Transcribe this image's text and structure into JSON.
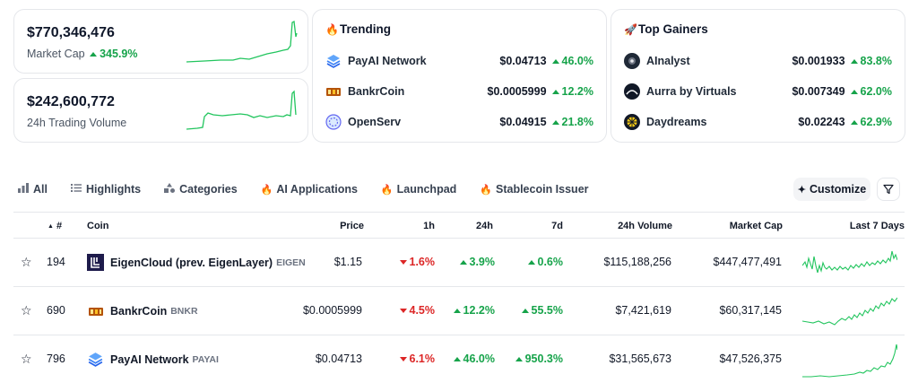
{
  "stats": [
    {
      "value": "$770,346,476",
      "label": "Market Cap",
      "change": "345.9%"
    },
    {
      "value": "$242,600,772",
      "label": "24h Trading Volume",
      "change": ""
    }
  ],
  "trending": {
    "title": "Trending",
    "icon": "fire-icon",
    "items": [
      {
        "name": "PayAI Network",
        "price": "$0.04713",
        "change": "46.0%"
      },
      {
        "name": "BankrCoin",
        "price": "$0.0005999",
        "change": "12.2%"
      },
      {
        "name": "OpenServ",
        "price": "$0.04915",
        "change": "21.8%"
      }
    ]
  },
  "gainers": {
    "title": "Top Gainers",
    "icon": "rocket-icon",
    "items": [
      {
        "name": "AInalyst",
        "price": "$0.001933",
        "change": "83.8%"
      },
      {
        "name": "Aurra by Virtuals",
        "price": "$0.007349",
        "change": "62.0%"
      },
      {
        "name": "Daydreams",
        "price": "$0.02243",
        "change": "62.9%"
      }
    ]
  },
  "tabs": [
    {
      "label": "All",
      "icon": "bar-chart-icon"
    },
    {
      "label": "Highlights",
      "icon": "list-icon"
    },
    {
      "label": "Categories",
      "icon": "shapes-icon"
    },
    {
      "label": "AI Applications",
      "icon": "fire-icon"
    },
    {
      "label": "Launchpad",
      "icon": "fire-icon"
    },
    {
      "label": "Stablecoin Issuer",
      "icon": "fire-icon"
    }
  ],
  "toolbar": {
    "customize_label": "Customize"
  },
  "table": {
    "headers": {
      "rank": "#",
      "coin": "Coin",
      "price": "Price",
      "h1": "1h",
      "h24": "24h",
      "d7": "7d",
      "volume": "24h Volume",
      "mcap": "Market Cap",
      "last7": "Last 7 Days"
    },
    "rows": [
      {
        "rank": "194",
        "name": "EigenCloud (prev. EigenLayer)",
        "symbol": "EIGEN",
        "price": "$1.15",
        "h1": "1.6%",
        "h1_dir": "down",
        "h24": "3.9%",
        "h24_dir": "up",
        "d7": "0.6%",
        "d7_dir": "up",
        "volume": "$115,188,256",
        "mcap": "$447,477,491"
      },
      {
        "rank": "690",
        "name": "BankrCoin",
        "symbol": "BNKR",
        "price": "$0.0005999",
        "h1": "4.5%",
        "h1_dir": "down",
        "h24": "12.2%",
        "h24_dir": "up",
        "d7": "55.5%",
        "d7_dir": "up",
        "volume": "$7,421,619",
        "mcap": "$60,317,145"
      },
      {
        "rank": "796",
        "name": "PayAI Network",
        "symbol": "PAYAI",
        "price": "$0.04713",
        "h1": "6.1%",
        "h1_dir": "down",
        "h24": "46.0%",
        "h24_dir": "up",
        "d7": "950.3%",
        "d7_dir": "up",
        "volume": "$31,565,673",
        "mcap": "$47,526,375"
      }
    ]
  },
  "colors": {
    "up": "#16a34a",
    "down": "#dc2626",
    "spark": "#22c55e"
  }
}
